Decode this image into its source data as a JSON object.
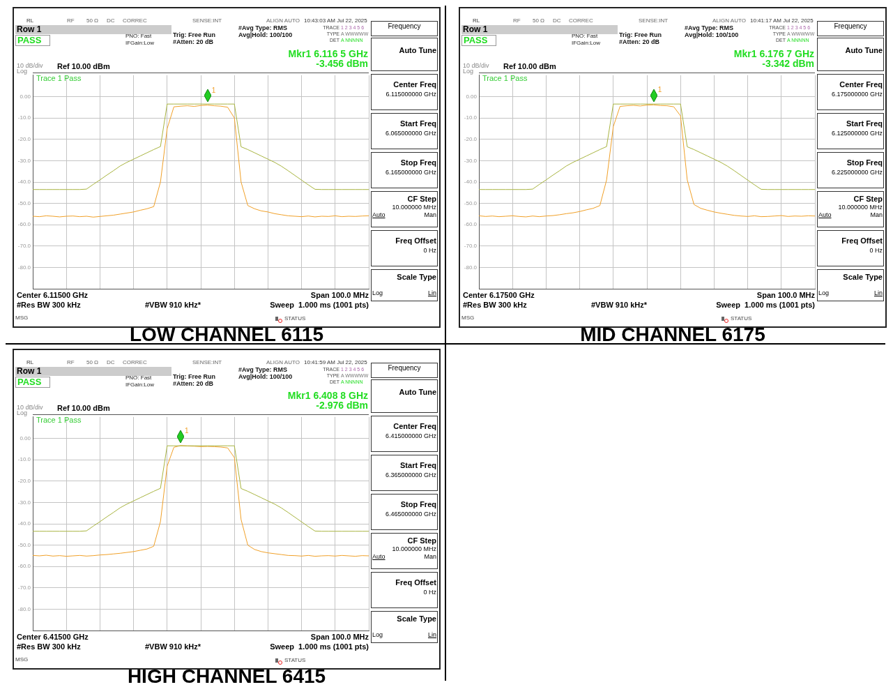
{
  "chart_data": [
    {
      "type": "line",
      "title": "LOW CHANNEL 6115",
      "grid": true,
      "legend": false,
      "tick_labels": "y",
      "marker": "none",
      "ylim": [
        -90,
        10
      ],
      "yticks": [
        {
          "value": 0,
          "label": "0.00"
        },
        {
          "value": -10,
          "label": "-10.0"
        },
        {
          "value": -20,
          "label": "-20.0"
        },
        {
          "value": -30,
          "label": "-30.0"
        },
        {
          "value": -40,
          "label": "-40.0"
        },
        {
          "value": -50,
          "label": "-50.0"
        },
        {
          "value": -60,
          "label": "-60.0"
        },
        {
          "value": -70,
          "label": "-70.0"
        },
        {
          "value": -80,
          "label": "-80.0"
        }
      ],
      "categories": [
        null,
        null,
        null,
        null,
        null,
        null,
        null,
        null,
        null,
        null,
        null,
        null,
        null,
        null,
        null,
        null,
        null,
        null,
        null,
        null,
        null,
        null,
        null,
        null,
        null,
        null,
        null,
        null,
        null,
        null,
        null,
        null,
        null,
        null,
        null,
        null,
        null,
        null,
        null,
        null,
        null,
        null,
        null,
        null,
        null,
        null,
        null,
        null,
        null,
        null,
        null
      ],
      "series": [
        {
          "color": "#a8b440",
          "values": [
            -43.5,
            -43.5,
            -43.5,
            -43.5,
            -43.5,
            -43.5,
            -43.5,
            -43.5,
            -43.3,
            -41.1,
            -39,
            -36.8,
            -34.7,
            -32.5,
            -30.8,
            -29.3,
            -27.8,
            -26.3,
            -24.8,
            -23.4,
            -3.5,
            -3.5,
            -3.5,
            -3.5,
            -3.5,
            -3.5,
            -3.5,
            -3.5,
            -3.5,
            -3.5,
            -3.5,
            -23.5,
            -24.8,
            -26.3,
            -27.8,
            -29.3,
            -30.8,
            -32.6,
            -34.7,
            -36.9,
            -39.1,
            -41.3,
            -43.4,
            -43.5,
            -43.5,
            -43.5,
            -43.5,
            -43.5,
            -43.5,
            -43.5,
            -43.5
          ]
        },
        {
          "color": "#f0a028",
          "values": [
            -56,
            -56.2,
            -55.8,
            -56,
            -56.3,
            -56,
            -55.9,
            -56.2,
            -56,
            -56.4,
            -56.1,
            -55.8,
            -55.5,
            -55,
            -54.5,
            -54,
            -53.2,
            -52.5,
            -51.5,
            -40,
            -15,
            -4.8,
            -4.5,
            -4.3,
            -4.6,
            -4.2,
            -4,
            -4.3,
            -4.5,
            -5,
            -10,
            -40,
            -51,
            -52.5,
            -53.5,
            -54,
            -54.8,
            -55.3,
            -55.8,
            -56,
            -56.2,
            -55.9,
            -56.3,
            -56,
            -56.1,
            -55.8,
            -56.2,
            -56,
            -56.1,
            -55.9,
            -55.8
          ]
        }
      ],
      "annotations": [
        "RL",
        "RF",
        "50 Ω",
        "DC",
        "CORREC",
        "SENSE:INT",
        "ALIGN AUTO",
        "10:43:03 AM Jul 22, 2025",
        "Row 1",
        "PASS",
        "PNO: Fast",
        "IFGain:Low",
        "Trig: Free Run",
        "#Atten: 20 dB",
        "#Avg Type: RMS",
        "Avg|Hold: 100/100",
        "TRACE",
        "1 2 3 4 5 6",
        "TYPE",
        "A WWWWW",
        "DET",
        "A NNNNN",
        "Mkr1 6.116 5 GHz",
        "-3.456 dBm",
        "10 dB/div",
        "Ref 10.00 dBm",
        "Log",
        "Trace 1 Pass",
        "Center 6.11500 GHz",
        "Span 100.0 MHz",
        "#Res BW 300 kHz",
        "#VBW 910 kHz*",
        "Sweep  1.000 ms (1001 pts)",
        "MSG",
        "STATUS",
        "Frequency",
        "Auto Tune",
        "Center Freq",
        "6.115000000 GHz",
        "Start Freq",
        "6.065000000 GHz",
        "Stop Freq",
        "6.165000000 GHz",
        "CF Step",
        "10.000000 MHz",
        "Auto",
        "Man",
        "Freq Offset",
        "0 Hz",
        "Scale Type",
        "Log",
        "Lin",
        {
          "text": "1",
          "y": -3.456
        }
      ]
    },
    {
      "type": "line",
      "title": "MID CHANNEL 6175",
      "grid": true,
      "legend": false,
      "tick_labels": "y",
      "marker": "none",
      "ylim": [
        -90,
        10
      ],
      "yticks": [
        {
          "value": 0,
          "label": "0.00"
        },
        {
          "value": -10,
          "label": "-10.0"
        },
        {
          "value": -20,
          "label": "-20.0"
        },
        {
          "value": -30,
          "label": "-30.0"
        },
        {
          "value": -40,
          "label": "-40.0"
        },
        {
          "value": -50,
          "label": "-50.0"
        },
        {
          "value": -60,
          "label": "-60.0"
        },
        {
          "value": -70,
          "label": "-70.0"
        },
        {
          "value": -80,
          "label": "-80.0"
        }
      ],
      "categories": [
        null,
        null,
        null,
        null,
        null,
        null,
        null,
        null,
        null,
        null,
        null,
        null,
        null,
        null,
        null,
        null,
        null,
        null,
        null,
        null,
        null,
        null,
        null,
        null,
        null,
        null,
        null,
        null,
        null,
        null,
        null,
        null,
        null,
        null,
        null,
        null,
        null,
        null,
        null,
        null,
        null,
        null,
        null,
        null,
        null,
        null,
        null,
        null,
        null,
        null,
        null
      ],
      "series": [
        {
          "color": "#a8b440",
          "values": [
            -43.5,
            -43.5,
            -43.5,
            -43.5,
            -43.5,
            -43.5,
            -43.5,
            -43.5,
            -43.3,
            -41.1,
            -39,
            -36.8,
            -34.7,
            -32.5,
            -30.8,
            -29.3,
            -27.8,
            -26.3,
            -24.8,
            -23.4,
            -3.5,
            -3.5,
            -3.5,
            -3.5,
            -3.5,
            -3.5,
            -3.5,
            -3.5,
            -3.5,
            -3.5,
            -3.5,
            -23.5,
            -24.8,
            -26.3,
            -27.8,
            -29.3,
            -30.8,
            -32.6,
            -34.7,
            -36.9,
            -39.1,
            -41.3,
            -43.4,
            -43.5,
            -43.5,
            -43.5,
            -43.5,
            -43.5,
            -43.5,
            -43.5,
            -43.5
          ]
        },
        {
          "color": "#f0a028",
          "values": [
            -55.8,
            -56.1,
            -55.9,
            -56.2,
            -56,
            -55.8,
            -56.1,
            -56.3,
            -55.9,
            -56.2,
            -55.9,
            -55.7,
            -55.3,
            -54.8,
            -54.4,
            -53.8,
            -53,
            -52.3,
            -51,
            -39,
            -14,
            -4.6,
            -4.3,
            -4.1,
            -4.4,
            -4,
            -3.9,
            -4.2,
            -4.3,
            -4.8,
            -9,
            -39,
            -50.5,
            -52.3,
            -53.2,
            -54,
            -54.6,
            -55.1,
            -55.6,
            -55.9,
            -56.1,
            -55.8,
            -56.2,
            -56.1,
            -55.9,
            -55.7,
            -56.1,
            -55.9,
            -56,
            -55.8,
            -55.9
          ]
        }
      ],
      "annotations": [
        "RL",
        "RF",
        "50 Ω",
        "DC",
        "CORREC",
        "SENSE:INT",
        "ALIGN AUTO",
        "10:41:17 AM Jul 22, 2025",
        "Row 1",
        "PASS",
        "PNO: Fast",
        "IFGain:Low",
        "Trig: Free Run",
        "#Atten: 20 dB",
        "#Avg Type: RMS",
        "Avg|Hold: 100/100",
        "TRACE",
        "1 2 3 4 5 6",
        "TYPE",
        "A WWWWW",
        "DET",
        "A NNNNN",
        "Mkr1 6.176 7 GHz",
        "-3.342 dBm",
        "10 dB/div",
        "Ref 10.00 dBm",
        "Log",
        "Trace 1 Pass",
        "Center 6.17500 GHz",
        "Span 100.0 MHz",
        "#Res BW 300 kHz",
        "#VBW 910 kHz*",
        "Sweep  1.000 ms (1001 pts)",
        "MSG",
        "STATUS",
        "Frequency",
        "Auto Tune",
        "Center Freq",
        "6.175000000 GHz",
        "Start Freq",
        "6.125000000 GHz",
        "Stop Freq",
        "6.225000000 GHz",
        "CF Step",
        "10.000000 MHz",
        "Auto",
        "Man",
        "Freq Offset",
        "0 Hz",
        "Scale Type",
        "Log",
        "Lin",
        {
          "text": "1",
          "y": -3.342
        }
      ]
    },
    {
      "type": "line",
      "title": "HIGH CHANNEL 6415",
      "grid": true,
      "legend": false,
      "tick_labels": "y",
      "marker": "none",
      "ylim": [
        -90,
        10
      ],
      "yticks": [
        {
          "value": 0,
          "label": "0.00"
        },
        {
          "value": -10,
          "label": "-10.0"
        },
        {
          "value": -20,
          "label": "-20.0"
        },
        {
          "value": -30,
          "label": "-30.0"
        },
        {
          "value": -40,
          "label": "-40.0"
        },
        {
          "value": -50,
          "label": "-50.0"
        },
        {
          "value": -60,
          "label": "-60.0"
        },
        {
          "value": -70,
          "label": "-70.0"
        },
        {
          "value": -80,
          "label": "-80.0"
        }
      ],
      "categories": [
        null,
        null,
        null,
        null,
        null,
        null,
        null,
        null,
        null,
        null,
        null,
        null,
        null,
        null,
        null,
        null,
        null,
        null,
        null,
        null,
        null,
        null,
        null,
        null,
        null,
        null,
        null,
        null,
        null,
        null,
        null,
        null,
        null,
        null,
        null,
        null,
        null,
        null,
        null,
        null,
        null,
        null,
        null,
        null,
        null,
        null,
        null,
        null,
        null,
        null,
        null
      ],
      "series": [
        {
          "color": "#a8b440",
          "values": [
            -43.5,
            -43.5,
            -43.5,
            -43.5,
            -43.5,
            -43.5,
            -43.5,
            -43.5,
            -43.3,
            -41.1,
            -39,
            -36.8,
            -34.7,
            -32.5,
            -30.8,
            -29.3,
            -27.8,
            -26.3,
            -24.8,
            -23.4,
            -3.5,
            -3.5,
            -3.5,
            -3.5,
            -3.5,
            -3.5,
            -3.5,
            -3.5,
            -3.5,
            -3.5,
            -3.5,
            -23.5,
            -24.8,
            -26.3,
            -27.8,
            -29.3,
            -30.8,
            -32.6,
            -34.7,
            -36.9,
            -39.1,
            -41.3,
            -43.4,
            -43.5,
            -43.5,
            -43.5,
            -43.5,
            -43.5,
            -43.5,
            -43.5,
            -43.5
          ]
        },
        {
          "color": "#f0a028",
          "values": [
            -54.8,
            -55,
            -54.7,
            -55.1,
            -54.9,
            -55.2,
            -55,
            -54.8,
            -55.1,
            -54.9,
            -54.6,
            -54.4,
            -54.1,
            -53.8,
            -53.4,
            -53,
            -52.4,
            -51.8,
            -50.5,
            -39,
            -13,
            -4.2,
            -3.4,
            -3.6,
            -3.7,
            -3.9,
            -3.8,
            -3.9,
            -4.1,
            -4.5,
            -9,
            -38,
            -50,
            -52,
            -53,
            -53.6,
            -54,
            -54.4,
            -54.8,
            -54.9,
            -55.1,
            -54.8,
            -55.2,
            -55,
            -54.9,
            -55.1,
            -54.8,
            -55,
            -55.2,
            -54.9,
            -55
          ]
        }
      ],
      "annotations": [
        "RL",
        "RF",
        "50 Ω",
        "DC",
        "CORREC",
        "SENSE:INT",
        "ALIGN AUTO",
        "10:41:59 AM Jul 22, 2025",
        "Row 1",
        "PASS",
        "PNO: Fast",
        "IFGain:Low",
        "Trig: Free Run",
        "#Atten: 20 dB",
        "#Avg Type: RMS",
        "Avg|Hold: 100/100",
        "TRACE",
        "1 2 3 4 5 6",
        "TYPE",
        "A WWWWW",
        "DET",
        "A NNNNN",
        "Mkr1 6.408 8 GHz",
        "-2.976 dBm",
        "10 dB/div",
        "Ref 10.00 dBm",
        "Log",
        "Trace 1 Pass",
        "Center 6.41500 GHz",
        "Span 100.0 MHz",
        "#Res BW 300 kHz",
        "#VBW 910 kHz*",
        "Sweep  1.000 ms (1001 pts)",
        "MSG",
        "STATUS",
        "Frequency",
        "Auto Tune",
        "Center Freq",
        "6.415000000 GHz",
        "Start Freq",
        "6.365000000 GHz",
        "Stop Freq",
        "6.465000000 GHz",
        "CF Step",
        "10.000000 MHz",
        "Auto",
        "Man",
        "Freq Offset",
        "0 Hz",
        "Scale Type",
        "Log",
        "Lin",
        {
          "text": "1",
          "y": -2.976
        }
      ]
    }
  ]
}
